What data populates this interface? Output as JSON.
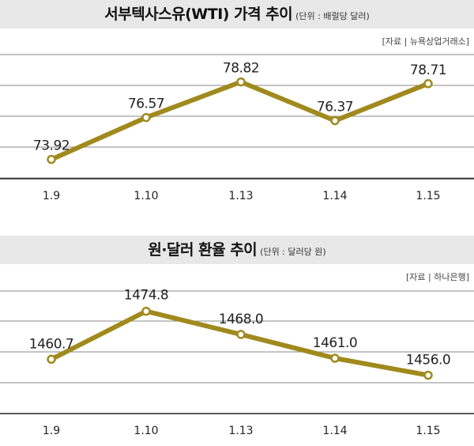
{
  "charts": [
    {
      "title": "서부텍사스유(WTI) 가격 추이",
      "unit_note": "(단위 : 배럴당 달러)",
      "source": "[자료 | 뉴욕상업거래소]"
    },
    {
      "title": "원·달러 환율 추이",
      "unit_note": "(단위 : 달러당 원)",
      "source": "[자료 | 하나은행]"
    }
  ],
  "chart_data": [
    {
      "type": "line",
      "title": "서부텍사스유(WTI) 가격 추이",
      "subtitle": "(단위 : 배럴당 달러)",
      "source": "[자료 | 뉴욕상업거래소]",
      "categories": [
        "1.9",
        "1.10",
        "1.13",
        "1.14",
        "1.15"
      ],
      "values": [
        73.92,
        76.57,
        78.82,
        76.37,
        78.71
      ],
      "value_labels": [
        "73.92",
        "76.57",
        "78.82",
        "76.37",
        "78.71"
      ],
      "ylim": [
        71,
        81
      ],
      "grid": true,
      "line_color": "#a08a1e"
    },
    {
      "type": "line",
      "title": "원·달러 환율 추이",
      "subtitle": "(단위 : 달러당 원)",
      "source": "[자료 | 하나은행]",
      "categories": [
        "1.9",
        "1.10",
        "1.13",
        "1.14",
        "1.15"
      ],
      "values": [
        1460.7,
        1474.8,
        1468.0,
        1461.0,
        1456.0
      ],
      "value_labels": [
        "1460.7",
        "1474.8",
        "1468.0",
        "1461.0",
        "1456.0"
      ],
      "ylim": [
        1438,
        1484
      ],
      "grid": true,
      "line_color": "#a08a1e"
    }
  ]
}
